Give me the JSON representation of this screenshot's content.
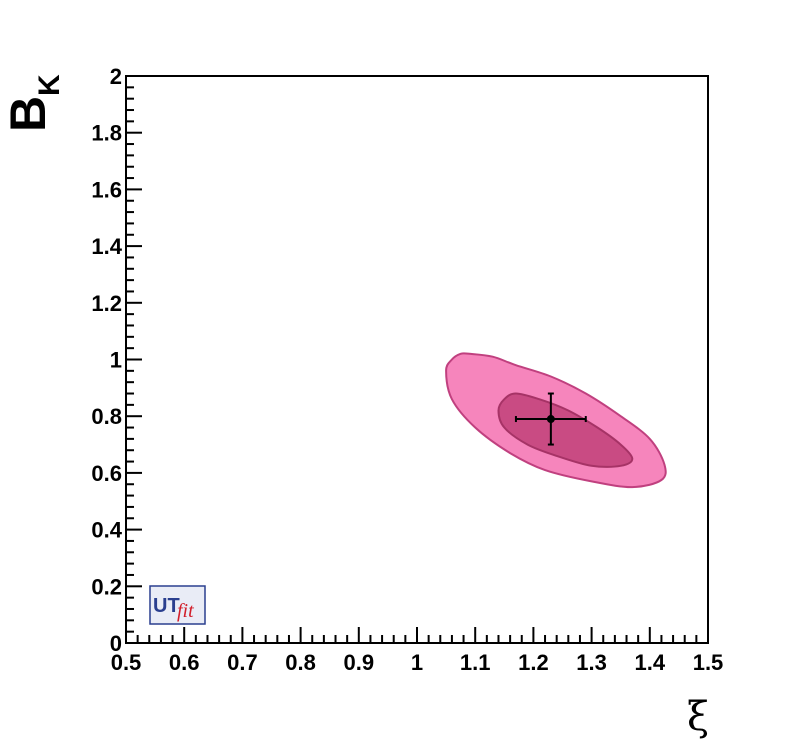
{
  "chart_data": {
    "type": "contour",
    "xlabel": "ξ",
    "ylabel": "B",
    "ylabel_subscript": "K",
    "xlim": [
      0.5,
      1.5
    ],
    "ylim": [
      0,
      2
    ],
    "x_ticks": [
      "0.5",
      "0.6",
      "0.7",
      "0.8",
      "0.9",
      "1",
      "1.1",
      "1.2",
      "1.3",
      "1.4",
      "1.5"
    ],
    "y_ticks": [
      "0",
      "0.2",
      "0.4",
      "0.6",
      "0.8",
      "1",
      "1.2",
      "1.4",
      "1.6",
      "1.8",
      "2"
    ],
    "grid": false,
    "regions": [
      {
        "level": "outer",
        "color": "#f685bc",
        "stroke": "#c0407f",
        "points": [
          [
            1.075,
            1.02
          ],
          [
            1.09,
            1.02
          ],
          [
            1.13,
            1.01
          ],
          [
            1.17,
            0.98
          ],
          [
            1.23,
            0.94
          ],
          [
            1.29,
            0.88
          ],
          [
            1.35,
            0.8
          ],
          [
            1.4,
            0.72
          ],
          [
            1.425,
            0.63
          ],
          [
            1.42,
            0.575
          ],
          [
            1.37,
            0.55
          ],
          [
            1.3,
            0.57
          ],
          [
            1.22,
            0.61
          ],
          [
            1.16,
            0.67
          ],
          [
            1.1,
            0.76
          ],
          [
            1.06,
            0.86
          ],
          [
            1.05,
            0.96
          ],
          [
            1.06,
            1.0
          ]
        ]
      },
      {
        "level": "inner",
        "color": "#c94b83",
        "stroke": "#a63366",
        "points": [
          [
            1.15,
            0.86
          ],
          [
            1.17,
            0.88
          ],
          [
            1.21,
            0.86
          ],
          [
            1.26,
            0.82
          ],
          [
            1.31,
            0.76
          ],
          [
            1.35,
            0.7
          ],
          [
            1.37,
            0.65
          ],
          [
            1.35,
            0.625
          ],
          [
            1.3,
            0.625
          ],
          [
            1.24,
            0.66
          ],
          [
            1.19,
            0.7
          ],
          [
            1.15,
            0.76
          ],
          [
            1.14,
            0.82
          ]
        ]
      }
    ],
    "points": [
      {
        "x": 1.23,
        "y": 0.79,
        "xerr": 0.06,
        "yerr": 0.09
      }
    ]
  },
  "logo": {
    "ut": "UT",
    "fit": "fit"
  }
}
